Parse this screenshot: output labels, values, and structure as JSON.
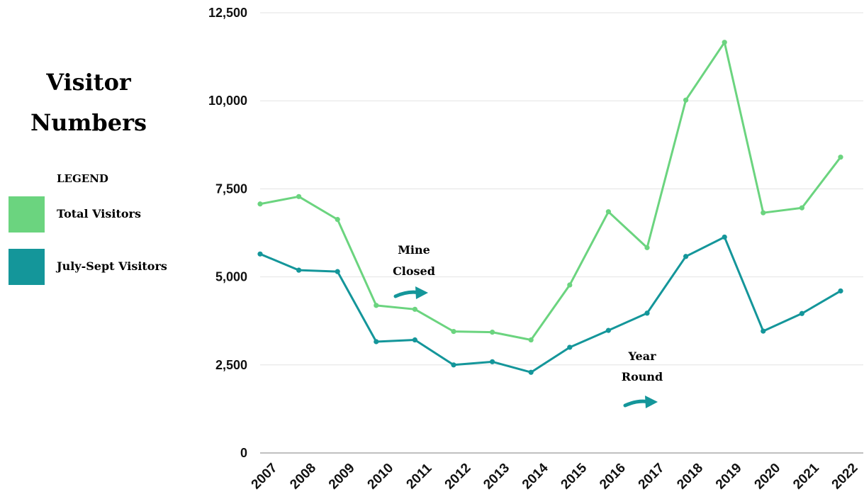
{
  "chart_data": {
    "type": "line",
    "title_lines": [
      "Visitor",
      "Numbers"
    ],
    "x": [
      "2007",
      "2008",
      "2009",
      "2010",
      "2011",
      "2012",
      "2013",
      "2014",
      "2015",
      "2016",
      "2017",
      "2018",
      "2019",
      "2020",
      "2021",
      "2022"
    ],
    "series": [
      {
        "name": "Total Visitors",
        "color": "#6bd47f",
        "values": [
          7070,
          7280,
          6630,
          4190,
          4080,
          3450,
          3430,
          3210,
          4770,
          6850,
          5830,
          10020,
          11660,
          6820,
          6960,
          8400
        ]
      },
      {
        "name": "July-Sept Visitors",
        "color": "#14969a",
        "values": [
          5650,
          5190,
          5150,
          3160,
          3210,
          2500,
          2590,
          2290,
          3000,
          3480,
          3970,
          5580,
          6130,
          3460,
          3960,
          4600
        ]
      }
    ],
    "ylim": [
      0,
      12500
    ],
    "y_ticks": [
      0,
      2500,
      5000,
      7500,
      10000,
      12500
    ],
    "y_tick_labels": [
      "0",
      "2,500",
      "5,000",
      "7,500",
      "10,000",
      "12,500"
    ],
    "grid": "horizontal",
    "legend": {
      "heading": "LEGEND",
      "placement": "left"
    },
    "annotations": [
      {
        "lines": [
          "Mine",
          "Closed"
        ],
        "near_x": "2010",
        "arrow": "arrow-right-icon",
        "color": "#14969a"
      },
      {
        "lines": [
          "Year",
          "Round"
        ],
        "near_x": "2016",
        "arrow": "arrow-right-icon",
        "color": "#14969a"
      }
    ]
  }
}
